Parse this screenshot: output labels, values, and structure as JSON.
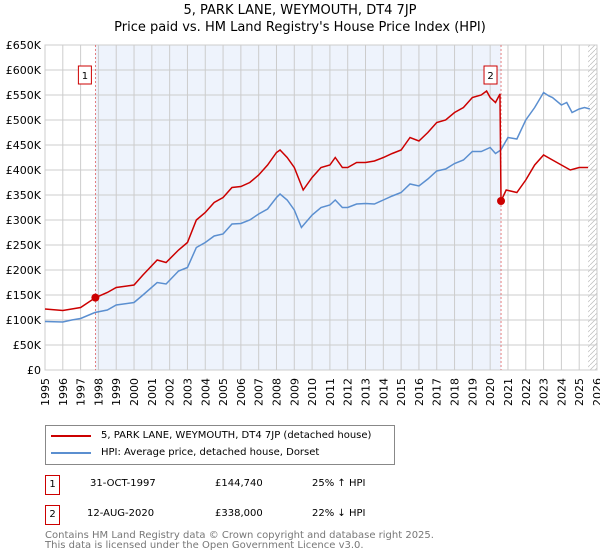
{
  "title": "5, PARK LANE, WEYMOUTH, DT4 7JP",
  "subtitle": "Price paid vs. HM Land Registry's House Price Index (HPI)",
  "chart_data": {
    "type": "line",
    "title": "5, PARK LANE, WEYMOUTH, DT4 7JP",
    "subtitle": "Price paid vs. HM Land Registry's House Price Index (HPI)",
    "xlim": [
      1995,
      2026
    ],
    "ylim": [
      0,
      650000
    ],
    "x_ticks": [
      "1995",
      "1996",
      "1997",
      "1998",
      "1999",
      "2000",
      "2001",
      "2002",
      "2003",
      "2004",
      "2005",
      "2006",
      "2007",
      "2008",
      "2009",
      "2010",
      "2011",
      "2012",
      "2013",
      "2014",
      "2015",
      "2016",
      "2017",
      "2018",
      "2019",
      "2020",
      "2021",
      "2022",
      "2023",
      "2024",
      "2025",
      "2026"
    ],
    "y_ticks": [
      "£0",
      "£50K",
      "£100K",
      "£150K",
      "£200K",
      "£250K",
      "£300K",
      "£350K",
      "£400K",
      "£450K",
      "£500K",
      "£550K",
      "£600K",
      "£650K"
    ],
    "grid": true,
    "shaded_range": [
      1997.83,
      2020.61
    ],
    "hatched_from": 2025.5,
    "series": [
      {
        "name": "5, PARK LANE, WEYMOUTH, DT4 7JP (detached house)",
        "color": "#cc0000",
        "x": [
          1995,
          1996,
          1997,
          1997.83,
          1998.5,
          1999,
          2000,
          2000.5,
          2001.3,
          2001.8,
          2002.5,
          2003,
          2003.5,
          2004,
          2004.5,
          2005,
          2005.5,
          2006,
          2006.5,
          2007,
          2007.5,
          2008,
          2008.2,
          2008.6,
          2009,
          2009.5,
          2010,
          2010.5,
          2011,
          2011.3,
          2011.7,
          2012,
          2012.5,
          2013,
          2013.5,
          2014,
          2014.5,
          2015,
          2015.5,
          2016,
          2016.5,
          2017,
          2017.5,
          2018,
          2018.5,
          2019,
          2019.5,
          2019.8,
          2020,
          2020.3,
          2020.55,
          2020.61,
          2020.9,
          2021.5,
          2022,
          2022.5,
          2023,
          2023.5,
          2024,
          2024.5,
          2025,
          2025.5
        ],
        "y": [
          122000,
          119000,
          125000,
          144740,
          155000,
          165000,
          170000,
          190000,
          220000,
          215000,
          240000,
          255000,
          300000,
          315000,
          335000,
          345000,
          365000,
          367000,
          375000,
          390000,
          410000,
          435000,
          440000,
          425000,
          405000,
          360000,
          385000,
          405000,
          410000,
          425000,
          405000,
          405000,
          415000,
          415000,
          418000,
          425000,
          433000,
          440000,
          465000,
          458000,
          475000,
          495000,
          500000,
          515000,
          525000,
          545000,
          550000,
          558000,
          545000,
          535000,
          552000,
          338000,
          360000,
          355000,
          380000,
          410000,
          430000,
          420000,
          410000,
          400000,
          405000,
          405000
        ]
      },
      {
        "name": "HPI: Average price, detached house, Dorset",
        "color": "#5b8fd0",
        "x": [
          1995,
          1996,
          1996.5,
          1997,
          1997.8,
          1998.5,
          1999,
          2000,
          2000.5,
          2001.3,
          2001.8,
          2002.5,
          2003,
          2003.5,
          2004,
          2004.5,
          2005,
          2005.5,
          2006,
          2006.5,
          2007,
          2007.5,
          2008,
          2008.2,
          2008.6,
          2009,
          2009.4,
          2010,
          2010.5,
          2011,
          2011.3,
          2011.7,
          2012,
          2012.5,
          2013,
          2013.5,
          2014,
          2014.5,
          2015,
          2015.5,
          2016,
          2016.5,
          2017,
          2017.5,
          2018,
          2018.5,
          2019,
          2019.5,
          2020,
          2020.3,
          2020.6,
          2021,
          2021.5,
          2022,
          2022.5,
          2023,
          2023.3,
          2023.5,
          2024,
          2024.3,
          2024.6,
          2025,
          2025.3,
          2025.6
        ],
        "y": [
          97000,
          96000,
          100000,
          103000,
          115000,
          120000,
          130000,
          135000,
          150000,
          175000,
          172000,
          198000,
          205000,
          245000,
          255000,
          268000,
          272000,
          292000,
          293000,
          300000,
          312000,
          322000,
          345000,
          352000,
          340000,
          320000,
          285000,
          310000,
          325000,
          330000,
          340000,
          325000,
          325000,
          332000,
          333000,
          332000,
          340000,
          348000,
          355000,
          372000,
          368000,
          382000,
          398000,
          402000,
          413000,
          420000,
          437000,
          437000,
          445000,
          433000,
          440000,
          465000,
          462000,
          500000,
          525000,
          555000,
          548000,
          545000,
          530000,
          535000,
          515000,
          522000,
          525000,
          522000
        ]
      }
    ],
    "annotations": [
      {
        "label": "1",
        "x": 1997.83,
        "y": 144740
      },
      {
        "label": "2",
        "x": 2020.61,
        "y": 338000
      }
    ]
  },
  "legend": {
    "items": [
      "5, PARK LANE, WEYMOUTH, DT4 7JP (detached house)",
      "HPI: Average price, detached house, Dorset"
    ]
  },
  "transactions": [
    {
      "num": "1",
      "date": "31-OCT-1997",
      "price": "£144,740",
      "hpi": "25% ↑ HPI"
    },
    {
      "num": "2",
      "date": "12-AUG-2020",
      "price": "£338,000",
      "hpi": "22% ↓ HPI"
    }
  ],
  "footer": {
    "line1": "Contains HM Land Registry data © Crown copyright and database right 2025.",
    "line2": "This data is licensed under the Open Government Licence v3.0."
  }
}
